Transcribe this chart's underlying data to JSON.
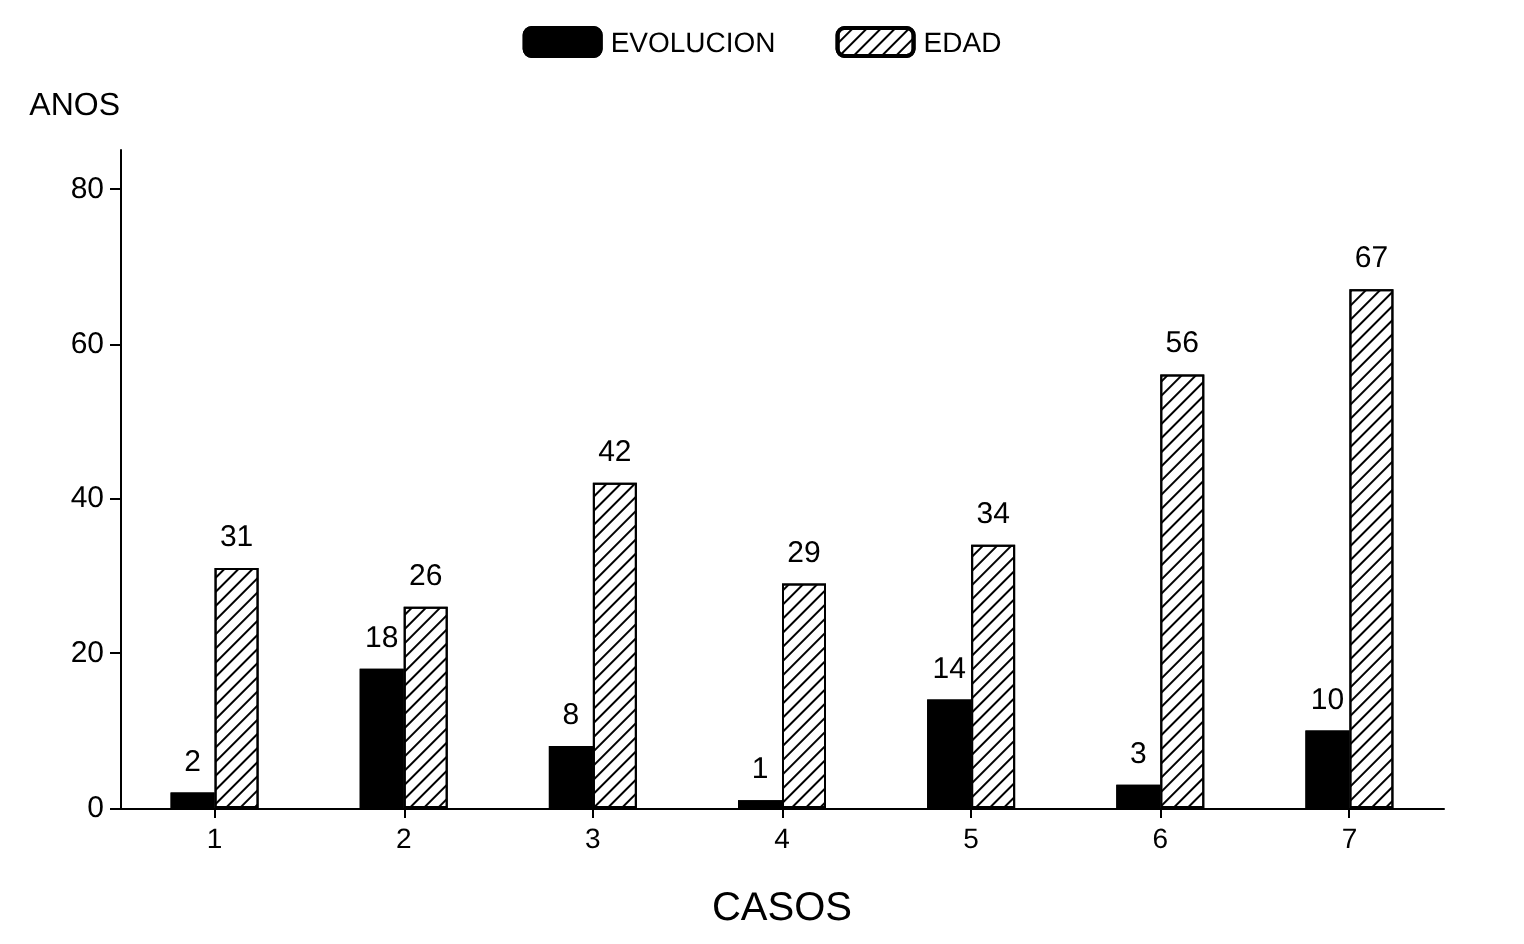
{
  "chart_data": {
    "type": "bar",
    "xlabel": "CASOS",
    "ylabel": "ANOS",
    "categories": [
      "1",
      "2",
      "3",
      "4",
      "5",
      "6",
      "7"
    ],
    "series": [
      {
        "name": "EVOLUCION",
        "color": "#000000",
        "values": [
          2,
          18,
          8,
          1,
          14,
          3,
          10
        ]
      },
      {
        "name": "EDAD",
        "color": "#ffffff",
        "values": [
          31,
          26,
          42,
          29,
          34,
          56,
          67
        ]
      }
    ],
    "ylim": [
      0,
      85
    ],
    "yticks": [
      0,
      20,
      40,
      60,
      80
    ],
    "grid": false,
    "legend": "top",
    "data_labels": true
  }
}
